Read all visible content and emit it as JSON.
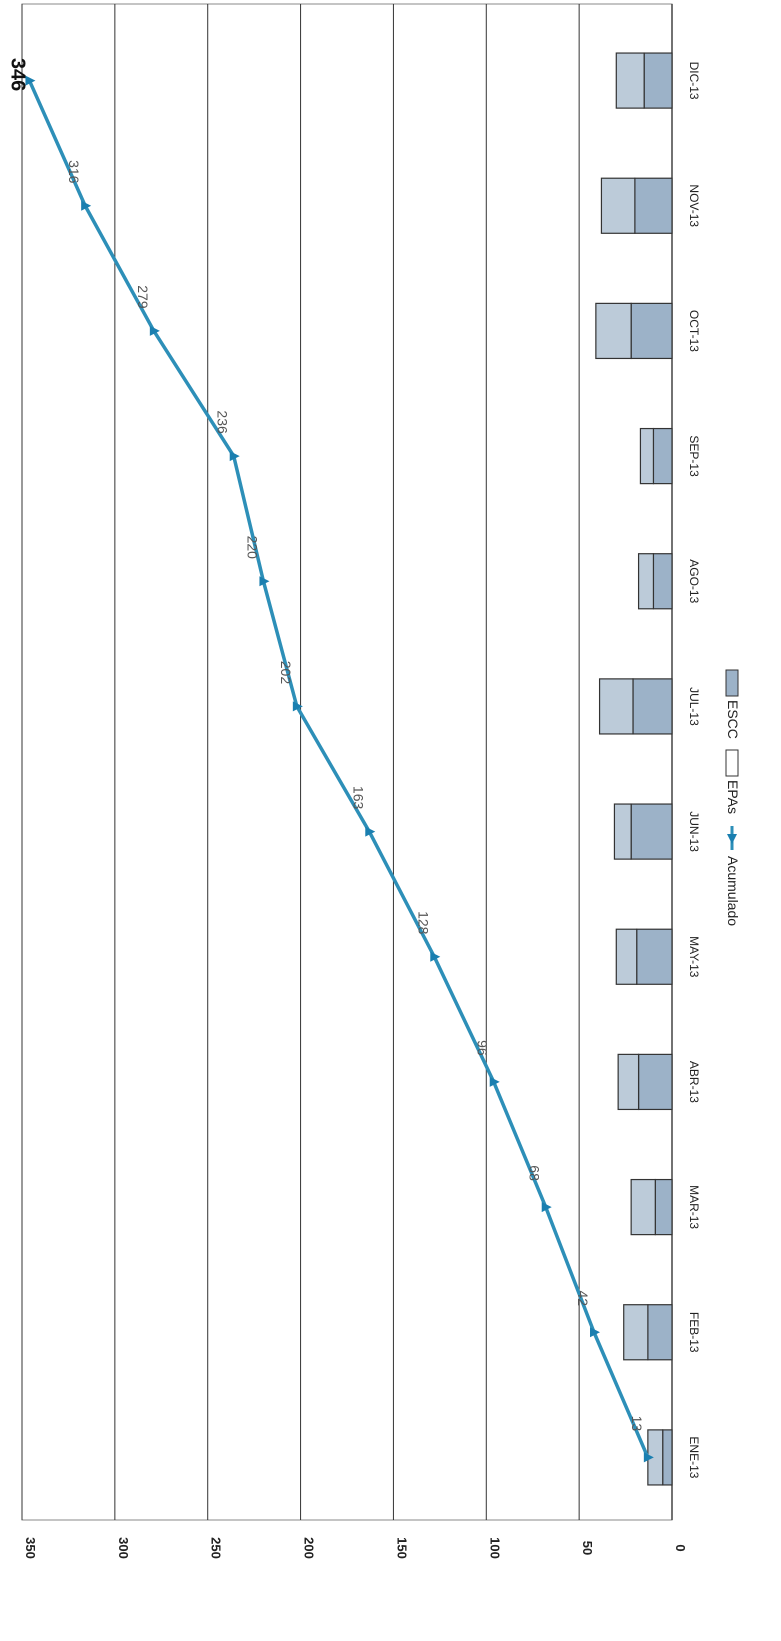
{
  "chart_data": {
    "type": "bar+line",
    "orientation": "rotated-90-clockwise",
    "categories": [
      "ENE-13",
      "FEB-13",
      "MAR-13",
      "ABR-13",
      "MAY-13",
      "JUN-13",
      "JUL-13",
      "AGO-13",
      "SEP-13",
      "OCT-13",
      "NOV-13",
      "DIC-13"
    ],
    "y_ticks": [
      0,
      50,
      100,
      150,
      200,
      250,
      300,
      350
    ],
    "ylim": [
      0,
      350
    ],
    "grid": true,
    "legend_position": "bottom",
    "series": [
      {
        "name": "ESCC",
        "type": "stacked-bar",
        "color": "#9cb2c8",
        "values": [
          5,
          13,
          9,
          18,
          19,
          22,
          21,
          10,
          10,
          22,
          20,
          15
        ]
      },
      {
        "name": "EPAs",
        "type": "stacked-bar",
        "color": "#bccbd9",
        "values": [
          8,
          13,
          13,
          11,
          11,
          9,
          18,
          8,
          7,
          19,
          18,
          15
        ]
      },
      {
        "name": "Acumulado",
        "type": "line",
        "color": "#2d8fb8",
        "marker_color": "#1a7fb0",
        "values": [
          13,
          42,
          68,
          96,
          128,
          163,
          202,
          220,
          236,
          279,
          316,
          346
        ],
        "data_labels": [
          "13",
          "42",
          "68",
          "96",
          "128",
          "163",
          "202",
          "220",
          "236",
          "279",
          "316",
          "346"
        ]
      }
    ],
    "legend": [
      "ESCC",
      "EPAs",
      "Acumulado"
    ]
  }
}
